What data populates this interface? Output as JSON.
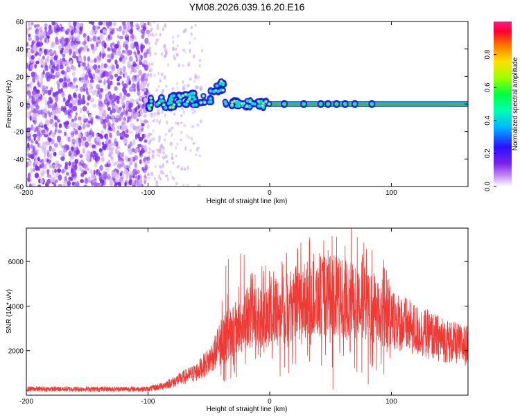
{
  "title": "YM08.2026.039.16.20.E16",
  "colors": {
    "snr_line": "#ef3a36",
    "spectrogram_scatter": "#7a2ff0",
    "band_core": "#e8232b",
    "band_edge": "#2222cc",
    "blob_green": "#22e58a",
    "blob_yellow": "#d9ee22"
  },
  "chart_data": [
    {
      "type": "heatmap",
      "name": "spectrogram",
      "title": "YM08.2026.039.16.20.E16",
      "xlabel": "Height of straight line (km)",
      "ylabel": "Frequency (Hz)",
      "xlim": [
        -200,
        163
      ],
      "ylim": [
        -60,
        60
      ],
      "xticks": [
        -200,
        -100,
        0,
        100
      ],
      "xtick_labels": [
        "-200",
        "-100",
        "0",
        "100"
      ],
      "yticks": [
        -60,
        -40,
        -20,
        0,
        20,
        40,
        60
      ],
      "ytick_labels": [
        "-60",
        "-40",
        "-20",
        "0",
        "20",
        "40",
        "60"
      ],
      "colorbar": {
        "label": "Normalized spectral amplitude",
        "range": [
          0,
          1
        ],
        "ticks": [
          0.0,
          0.2,
          0.4,
          0.6,
          0.8
        ],
        "tick_labels": [
          "0.0",
          "0.2",
          "0.4",
          "0.6",
          "0.8"
        ],
        "colormap": [
          "#ffffff",
          "#8a2be2",
          "#3010ff",
          "#00c8ff",
          "#00ff80",
          "#90ff00",
          "#ffe000",
          "#ff7a00",
          "#ff0033",
          "#ff1493"
        ]
      },
      "features": {
        "noise_region_x": [
          -200,
          -100
        ],
        "sparse_noise_x": [
          -100,
          -55
        ],
        "signal_band_start_x": 0,
        "signal_band_freq_hz": 0,
        "signal_band_halfwidth_hz": 2,
        "onset_signal_x": [
          -100,
          -38
        ],
        "onset_peak_freq_hz": 18
      }
    },
    {
      "type": "line",
      "name": "snr",
      "xlabel": "Height of straight line (km)",
      "ylabel": "SNR (10 * v/v)",
      "xlim": [
        -200,
        163
      ],
      "ylim": [
        0,
        7500
      ],
      "xticks": [
        -200,
        -100,
        0,
        100
      ],
      "xtick_labels": [
        "-200",
        "-100",
        "0",
        "100"
      ],
      "yticks": [
        2000,
        4000,
        6000
      ],
      "ytick_labels": [
        "2000",
        "4000",
        "6000"
      ],
      "envelope_x": [
        -200,
        -150,
        -100,
        -90,
        -80,
        -70,
        -60,
        -50,
        -45,
        -40,
        -30,
        -20,
        -10,
        0,
        10,
        20,
        30,
        40,
        50,
        60,
        70,
        80,
        90,
        100,
        110,
        120,
        130,
        140,
        150,
        163
      ],
      "envelope_y": [
        300,
        300,
        300,
        420,
        620,
        880,
        1120,
        1650,
        2100,
        2700,
        3150,
        3500,
        3800,
        3950,
        4100,
        4350,
        4600,
        4800,
        4850,
        4750,
        4650,
        4400,
        4100,
        3750,
        3450,
        3150,
        2950,
        2750,
        2550,
        2400
      ],
      "spikes": [
        {
          "x": -36,
          "y": 5800
        },
        {
          "x": -34,
          "y": 6100
        },
        {
          "x": -24,
          "y": 6350
        },
        {
          "x": -21,
          "y": 6300
        },
        {
          "x": -12,
          "y": 5400
        },
        {
          "x": -5,
          "y": 5300
        },
        {
          "x": 48,
          "y": 6500
        },
        {
          "x": 55,
          "y": 7100
        },
        {
          "x": 62,
          "y": 6700
        },
        {
          "x": 67,
          "y": 7500
        },
        {
          "x": 76,
          "y": 6300
        },
        {
          "x": 84,
          "y": 6500
        },
        {
          "x": 98,
          "y": 5200
        }
      ],
      "dips": [
        {
          "x": 52,
          "y": 250
        },
        {
          "x": 81,
          "y": 500
        },
        {
          "x": 46,
          "y": 1800
        },
        {
          "x": 66,
          "y": 2000
        },
        {
          "x": -40,
          "y": 900
        }
      ]
    }
  ]
}
